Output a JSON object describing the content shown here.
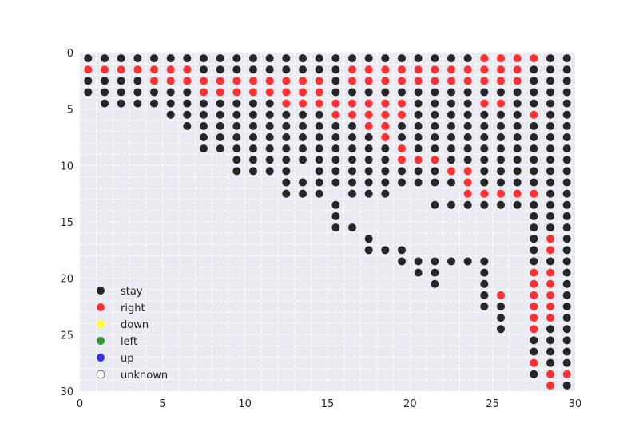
{
  "chart_data": {
    "type": "scatter",
    "grid_size": 30,
    "xlim": [
      0,
      30
    ],
    "ylim": [
      30,
      0
    ],
    "x_ticks": [
      0,
      5,
      10,
      15,
      20,
      25,
      30
    ],
    "y_ticks": [
      0,
      5,
      10,
      15,
      20,
      25,
      30
    ],
    "grid": true,
    "legend_position": "lower-left",
    "colors": {
      "stay": "#262626",
      "right": "#ff3030",
      "down": "#ffff30",
      "left": "#309a30",
      "up": "#3030ff",
      "unknown": "#ffffff"
    },
    "legend": [
      {
        "key": "stay",
        "label": "stay"
      },
      {
        "key": "right",
        "label": "right"
      },
      {
        "key": "down",
        "label": "down"
      },
      {
        "key": "left",
        "label": "left"
      },
      {
        "key": "up",
        "label": "up"
      },
      {
        "key": "unknown",
        "label": "unknown"
      }
    ],
    "rows": [
      "SSSSSSSSSSSSSSSSSSSSSSSSRRRRSS",
      "RRRRRRRSSSSSSSSSRRRRRRRRRRRSSS",
      "SSSSRRRRRRRRRRRSRRRRRRRRRRRSSS",
      "SSSSSSSRRRRRRRRSSSSSSSSSSSSSSS",
      "-SSSSSSSSSSSRRRRRRRRSSSSRRSSSS",
      "-----SSSSSSSSSSRRRRRSSSSSSSRSS",
      "------SSSSSSSSSSSRRSSSSSSSSSSS",
      "-------SSSSSSSSSSSRSSSSSSSSSSS",
      "-------SSSSSSSSSSSSRSSSSSSSSSS",
      "---------SSSSSSSSSSRRRSSSSSSSS",
      "---------SSSS-SSSSSSSSRRSSSSSS",
      "------------SSSSSSSSSSSRSSSSSS",
      "------------SSS-SSS----RRRRRSS",
      "---------------S-----SSSSSSSSS",
      "---------------S-----------SSS",
      "---------------SS----------SSS",
      "-----------------S---------SRS",
      "-----------------SSS-------SRS",
      "-------------------SSSSSS--SSS",
      "--------------------SS--S--RRS",
      "---------------------S--S--RRS",
      "------------------------SR-RRS",
      "------------------------SS-RRS",
      "-------------------------S-RRS",
      "-------------------------S-RSS",
      "---------------------------SSS",
      "---------------------------SSS",
      "---------------------------RSS",
      "---------------------------SRR",
      "----------------------------RS"
    ]
  }
}
